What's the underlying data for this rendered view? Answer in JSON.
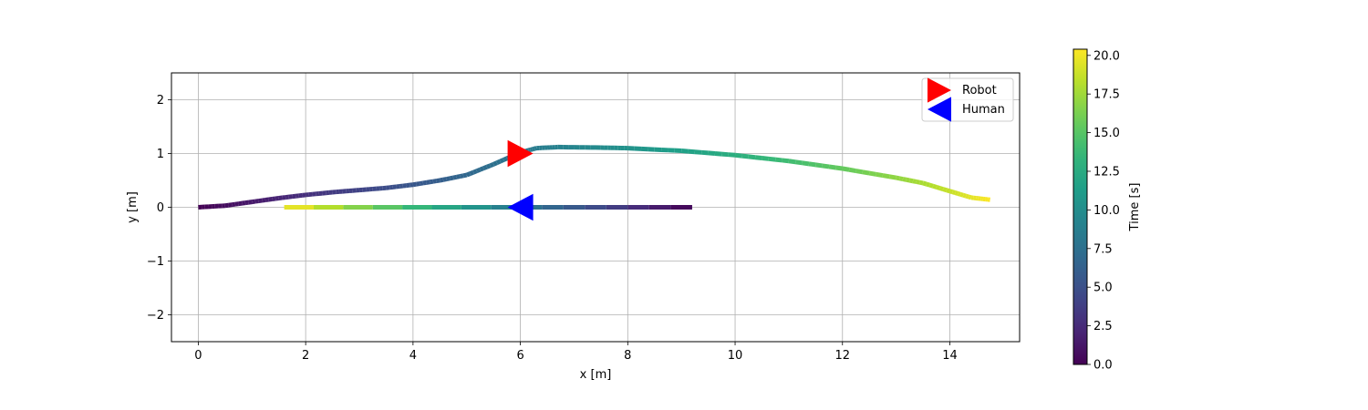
{
  "chart_data": {
    "type": "scatter",
    "xlabel": "x [m]",
    "ylabel": "y [m]",
    "xlim": [
      -0.5,
      15.3
    ],
    "ylim": [
      -2.5,
      2.5
    ],
    "xticks": [
      0,
      2,
      4,
      6,
      8,
      10,
      12,
      14
    ],
    "yticks": [
      -2,
      -1,
      0,
      1,
      2
    ],
    "xtick_labels": [
      "0",
      "2",
      "4",
      "6",
      "8",
      "10",
      "12",
      "14"
    ],
    "ytick_labels": [
      "−2",
      "−1",
      "0",
      "1",
      "2"
    ],
    "grid": true,
    "legend_position": "top-right",
    "colormap": "viridis",
    "colorbar": {
      "label": "Time [s]",
      "range": [
        0.0,
        20.4
      ],
      "ticks": [
        0.0,
        2.5,
        5.0,
        7.5,
        10.0,
        12.5,
        15.0,
        17.5,
        20.0
      ],
      "tick_labels": [
        "0.0",
        "2.5",
        "5.0",
        "7.5",
        "10.0",
        "12.5",
        "15.0",
        "17.5",
        "20.0"
      ]
    },
    "series": [
      {
        "name": "Robot",
        "marker": "triangle-right",
        "marker_color": "#ff0000",
        "current_position": {
          "x": 6.0,
          "y": 1.0
        },
        "points": [
          {
            "x": 0.0,
            "y": 0.0,
            "t": 0.0
          },
          {
            "x": 0.5,
            "y": 0.03,
            "t": 0.7
          },
          {
            "x": 1.0,
            "y": 0.1,
            "t": 1.4
          },
          {
            "x": 1.5,
            "y": 0.17,
            "t": 2.1
          },
          {
            "x": 2.0,
            "y": 0.23,
            "t": 2.8
          },
          {
            "x": 2.5,
            "y": 0.28,
            "t": 3.5
          },
          {
            "x": 3.0,
            "y": 0.32,
            "t": 4.1
          },
          {
            "x": 3.5,
            "y": 0.36,
            "t": 4.8
          },
          {
            "x": 4.0,
            "y": 0.42,
            "t": 5.5
          },
          {
            "x": 4.5,
            "y": 0.5,
            "t": 6.1
          },
          {
            "x": 5.0,
            "y": 0.6,
            "t": 6.8
          },
          {
            "x": 5.5,
            "y": 0.8,
            "t": 7.5
          },
          {
            "x": 6.0,
            "y": 1.02,
            "t": 8.2
          },
          {
            "x": 6.3,
            "y": 1.1,
            "t": 8.6
          },
          {
            "x": 6.7,
            "y": 1.12,
            "t": 9.0
          },
          {
            "x": 7.5,
            "y": 1.11,
            "t": 9.8
          },
          {
            "x": 8.0,
            "y": 1.1,
            "t": 10.4
          },
          {
            "x": 9.0,
            "y": 1.05,
            "t": 11.5
          },
          {
            "x": 10.0,
            "y": 0.97,
            "t": 12.8
          },
          {
            "x": 11.0,
            "y": 0.86,
            "t": 14.1
          },
          {
            "x": 12.0,
            "y": 0.72,
            "t": 15.5
          },
          {
            "x": 13.0,
            "y": 0.55,
            "t": 17.0
          },
          {
            "x": 13.5,
            "y": 0.45,
            "t": 17.8
          },
          {
            "x": 14.0,
            "y": 0.3,
            "t": 18.7
          },
          {
            "x": 14.4,
            "y": 0.18,
            "t": 19.6
          },
          {
            "x": 14.75,
            "y": 0.14,
            "t": 20.4
          }
        ]
      },
      {
        "name": "Human",
        "marker": "triangle-left",
        "marker_color": "#0000ff",
        "current_position": {
          "x": 6.0,
          "y": 0.0
        },
        "points": [
          {
            "x": 9.2,
            "y": 0.0,
            "t": 0.0
          },
          {
            "x": 6.0,
            "y": 0.0,
            "t": 8.2
          },
          {
            "x": 1.6,
            "y": 0.0,
            "t": 20.4
          }
        ]
      }
    ]
  }
}
